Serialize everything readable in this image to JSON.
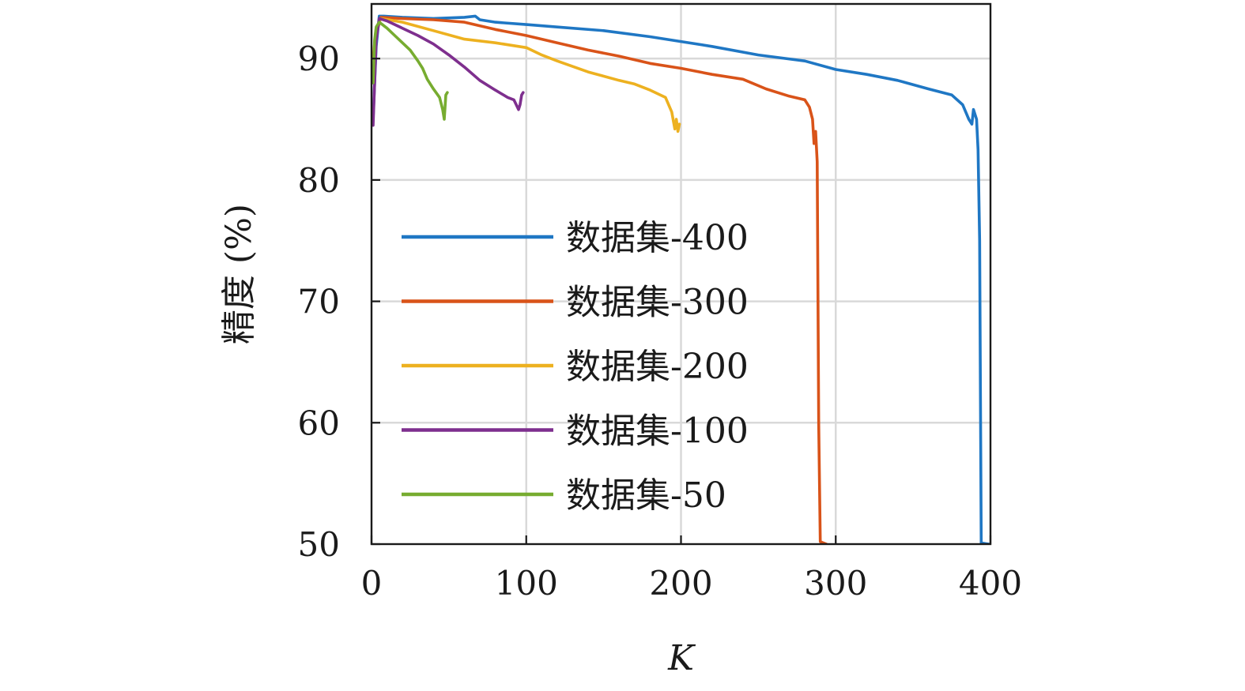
{
  "chart_data": {
    "type": "line",
    "xlabel": "K",
    "ylabel": "精度 (%)",
    "xlim": [
      0,
      400
    ],
    "ylim": [
      50,
      94.5
    ],
    "xticks": [
      0,
      100,
      200,
      300,
      400
    ],
    "yticks": [
      50,
      60,
      70,
      80,
      90
    ],
    "grid": true,
    "legend_position": "center-left",
    "series": [
      {
        "name": "数据集-400",
        "color": "#1f77c4",
        "points": [
          [
            1,
            85
          ],
          [
            3,
            91
          ],
          [
            5,
            93.5
          ],
          [
            8,
            93.5
          ],
          [
            20,
            93.4
          ],
          [
            40,
            93.3
          ],
          [
            60,
            93.4
          ],
          [
            67,
            93.5
          ],
          [
            70,
            93.2
          ],
          [
            80,
            93.0
          ],
          [
            100,
            92.8
          ],
          [
            120,
            92.6
          ],
          [
            150,
            92.3
          ],
          [
            180,
            91.8
          ],
          [
            200,
            91.4
          ],
          [
            220,
            91.0
          ],
          [
            250,
            90.3
          ],
          [
            280,
            89.8
          ],
          [
            300,
            89.1
          ],
          [
            320,
            88.7
          ],
          [
            340,
            88.2
          ],
          [
            360,
            87.5
          ],
          [
            375,
            87.0
          ],
          [
            382,
            86.2
          ],
          [
            386,
            85.0
          ],
          [
            388,
            84.6
          ],
          [
            389,
            85.8
          ],
          [
            391,
            85.0
          ],
          [
            392,
            82.5
          ],
          [
            393,
            75.0
          ],
          [
            394,
            50.1
          ],
          [
            399,
            50.0
          ]
        ]
      },
      {
        "name": "数据集-300",
        "color": "#d95319",
        "points": [
          [
            1,
            88
          ],
          [
            3,
            92
          ],
          [
            6,
            93.4
          ],
          [
            20,
            93.3
          ],
          [
            40,
            93.2
          ],
          [
            60,
            93.0
          ],
          [
            80,
            92.4
          ],
          [
            100,
            91.9
          ],
          [
            120,
            91.3
          ],
          [
            140,
            90.7
          ],
          [
            160,
            90.2
          ],
          [
            180,
            89.6
          ],
          [
            200,
            89.2
          ],
          [
            220,
            88.7
          ],
          [
            240,
            88.3
          ],
          [
            255,
            87.5
          ],
          [
            270,
            86.9
          ],
          [
            280,
            86.6
          ],
          [
            283,
            86.0
          ],
          [
            285,
            85.0
          ],
          [
            286,
            83.0
          ],
          [
            287,
            84.0
          ],
          [
            288,
            81.5
          ],
          [
            289,
            60.0
          ],
          [
            290,
            50.2
          ],
          [
            294,
            50.0
          ]
        ]
      },
      {
        "name": "数据集-200",
        "color": "#edb120",
        "points": [
          [
            1,
            90
          ],
          [
            3,
            92.5
          ],
          [
            6,
            93.3
          ],
          [
            20,
            93.0
          ],
          [
            40,
            92.3
          ],
          [
            60,
            91.6
          ],
          [
            80,
            91.3
          ],
          [
            100,
            90.9
          ],
          [
            110,
            90.3
          ],
          [
            120,
            89.8
          ],
          [
            140,
            88.9
          ],
          [
            160,
            88.2
          ],
          [
            170,
            87.9
          ],
          [
            180,
            87.4
          ],
          [
            190,
            86.8
          ],
          [
            194,
            85.6
          ],
          [
            196,
            84.2
          ],
          [
            197,
            85.0
          ],
          [
            198,
            84.0
          ],
          [
            199,
            84.6
          ]
        ]
      },
      {
        "name": "数据集-100",
        "color": "#7e2f8e",
        "points": [
          [
            1,
            84.5
          ],
          [
            2,
            88
          ],
          [
            3,
            91.5
          ],
          [
            5,
            93.3
          ],
          [
            10,
            93.1
          ],
          [
            20,
            92.5
          ],
          [
            30,
            91.9
          ],
          [
            40,
            91.2
          ],
          [
            50,
            90.3
          ],
          [
            60,
            89.3
          ],
          [
            70,
            88.2
          ],
          [
            80,
            87.4
          ],
          [
            88,
            86.8
          ],
          [
            92,
            86.6
          ],
          [
            95,
            85.8
          ],
          [
            96,
            86.2
          ],
          [
            97,
            87.0
          ],
          [
            98,
            87.2
          ]
        ]
      },
      {
        "name": "数据集-50",
        "color": "#77ac30",
        "points": [
          [
            1,
            88
          ],
          [
            2,
            91.5
          ],
          [
            3,
            92.6
          ],
          [
            5,
            93.0
          ],
          [
            10,
            92.5
          ],
          [
            15,
            91.9
          ],
          [
            20,
            91.3
          ],
          [
            25,
            90.7
          ],
          [
            30,
            89.8
          ],
          [
            33,
            89.2
          ],
          [
            36,
            88.3
          ],
          [
            40,
            87.5
          ],
          [
            44,
            86.8
          ],
          [
            46,
            85.8
          ],
          [
            47,
            85.0
          ],
          [
            48,
            87.0
          ],
          [
            49,
            87.2
          ]
        ]
      }
    ]
  }
}
